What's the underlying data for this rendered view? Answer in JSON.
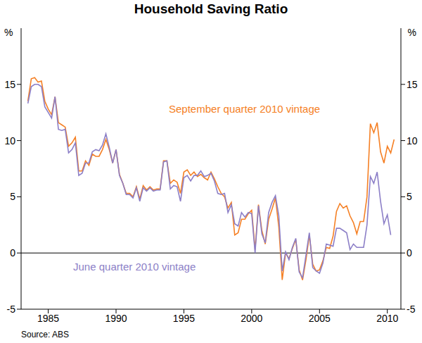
{
  "chart_data": {
    "type": "line",
    "title": "Household Saving Ratio",
    "ylabel": "%",
    "source": "Source: ABS",
    "x": [
      1983.5,
      1983.75,
      1984,
      1984.25,
      1984.5,
      1984.75,
      1985,
      1985.25,
      1985.5,
      1985.75,
      1986,
      1986.25,
      1986.5,
      1986.75,
      1987,
      1987.25,
      1987.5,
      1987.75,
      1988,
      1988.25,
      1988.5,
      1988.75,
      1989,
      1989.25,
      1989.5,
      1989.75,
      1990,
      1990.25,
      1990.5,
      1990.75,
      1991,
      1991.25,
      1991.5,
      1991.75,
      1992,
      1992.25,
      1992.5,
      1992.75,
      1993,
      1993.25,
      1993.5,
      1993.75,
      1994,
      1994.25,
      1994.5,
      1994.75,
      1995,
      1995.25,
      1995.5,
      1995.75,
      1996,
      1996.25,
      1996.5,
      1996.75,
      1997,
      1997.25,
      1997.5,
      1997.75,
      1998,
      1998.25,
      1998.5,
      1998.75,
      1999,
      1999.25,
      1999.5,
      1999.75,
      2000,
      2000.25,
      2000.5,
      2000.75,
      2001,
      2001.25,
      2001.5,
      2001.75,
      2002,
      2002.25,
      2002.5,
      2002.75,
      2003,
      2003.25,
      2003.5,
      2003.75,
      2004,
      2004.25,
      2004.5,
      2004.75,
      2005,
      2005.25,
      2005.5,
      2005.75,
      2006,
      2006.25,
      2006.5,
      2006.75,
      2007,
      2007.25,
      2007.5,
      2007.75,
      2008,
      2008.25,
      2008.5,
      2008.75,
      2009,
      2009.25,
      2009.5,
      2009.75,
      2010,
      2010.25,
      2010.5
    ],
    "series": [
      {
        "name": "September quarter 2010 vintage",
        "color": "#f58025",
        "values": [
          13.5,
          15.5,
          15.6,
          15.2,
          15.3,
          13.5,
          12.8,
          12.3,
          13.9,
          11.6,
          11.4,
          11.2,
          9.5,
          9.8,
          10.3,
          7.3,
          7.3,
          8.2,
          7.8,
          8.8,
          8.6,
          8.6,
          9.2,
          10.1,
          9.2,
          8.0,
          9.2,
          7.0,
          6.2,
          5.3,
          5.3,
          5.0,
          5.9,
          4.8,
          6.0,
          5.6,
          5.9,
          5.6,
          5.7,
          5.7,
          8.2,
          8.2,
          6.2,
          6.5,
          6.3,
          5.3,
          7.2,
          7.4,
          6.9,
          7.2,
          6.8,
          7.0,
          6.7,
          6.5,
          7.2,
          6.6,
          5.9,
          5.3,
          5.0,
          4.0,
          4.5,
          1.6,
          1.8,
          3.0,
          3.0,
          3.5,
          3.8,
          0.3,
          4.3,
          2.0,
          0.8,
          3.0,
          3.9,
          4.9,
          2.3,
          -2.4,
          0.0,
          -0.5,
          0.4,
          1.2,
          -1.5,
          -2.4,
          -0.6,
          1.6,
          -1.0,
          -1.6,
          -1.5,
          -0.7,
          0.5,
          0.4,
          1.5,
          3.7,
          4.4,
          4.0,
          4.2,
          3.3,
          2.7,
          1.7,
          2.8,
          2.8,
          5.0,
          11.5,
          10.7,
          11.6,
          9.0,
          8.0,
          9.5,
          8.9,
          10.1
        ]
      },
      {
        "name": "June quarter 2010 vintage",
        "color": "#8c7fc7",
        "values": [
          13.3,
          14.8,
          15.0,
          15.0,
          14.8,
          13.0,
          12.5,
          12.0,
          13.9,
          11.0,
          10.9,
          11.0,
          8.9,
          9.2,
          9.8,
          6.9,
          7.1,
          8.0,
          8.0,
          9.0,
          9.2,
          9.1,
          9.6,
          10.6,
          9.4,
          8.0,
          9.2,
          6.9,
          6.2,
          5.2,
          5.2,
          4.9,
          5.8,
          4.6,
          5.8,
          5.5,
          5.8,
          5.5,
          5.6,
          5.6,
          8.1,
          8.2,
          5.7,
          6.0,
          5.9,
          4.6,
          6.7,
          6.9,
          6.4,
          6.9,
          6.9,
          7.3,
          6.8,
          6.9,
          7.1,
          6.4,
          5.3,
          5.2,
          5.3,
          3.6,
          4.3,
          2.6,
          2.4,
          3.6,
          3.2,
          3.6,
          3.5,
          0.0,
          4.2,
          1.7,
          0.9,
          3.6,
          4.5,
          5.1,
          3.3,
          -1.6,
          0.1,
          -0.6,
          0.5,
          1.3,
          -1.7,
          -2.2,
          -0.2,
          1.8,
          -1.3,
          -1.6,
          -1.8,
          -0.9,
          0.8,
          0.7,
          0.6,
          2.2,
          2.2,
          2.0,
          1.8,
          0.3,
          0.8,
          0.5,
          0.5,
          0.5,
          2.5,
          6.8,
          6.2,
          7.2,
          4.6,
          2.6,
          3.4,
          1.6,
          null
        ]
      }
    ],
    "xlim": [
      1983,
      2011
    ],
    "xticks": [
      1985,
      1990,
      1995,
      2000,
      2005,
      2010
    ],
    "ylim": [
      -5,
      20
    ],
    "yticks": [
      -5,
      0,
      5,
      10,
      15
    ],
    "grid": false,
    "legend": false
  }
}
